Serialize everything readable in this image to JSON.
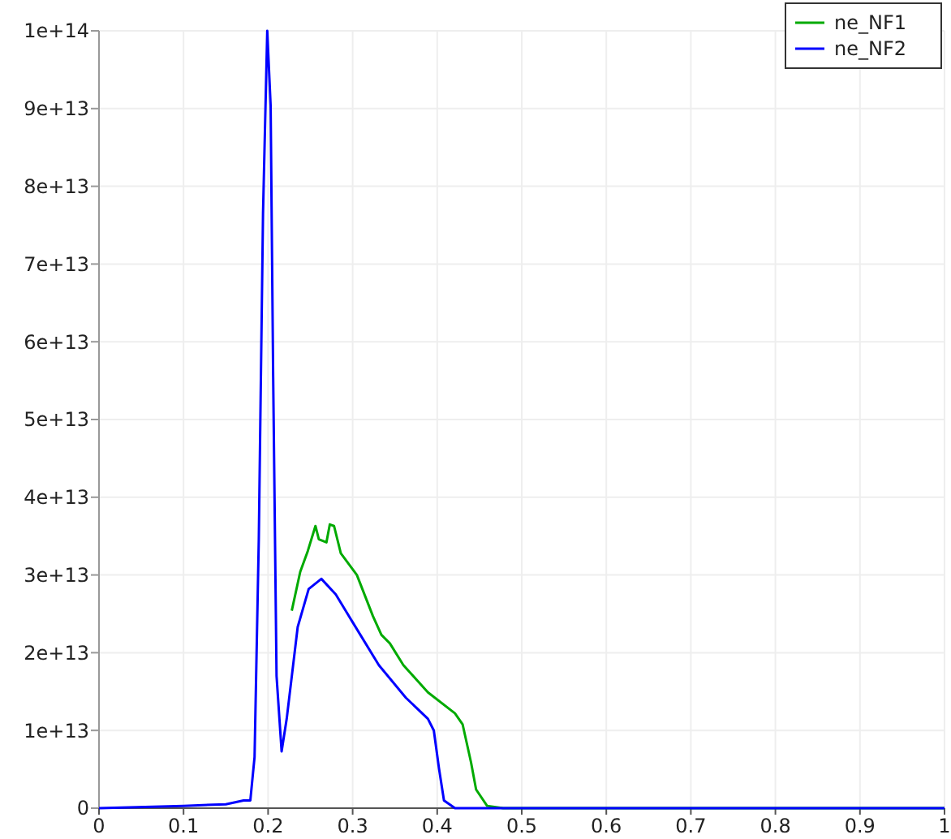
{
  "chart_data": {
    "type": "line",
    "xlim": [
      0,
      1
    ],
    "ylim": [
      0,
      100000000000000.0
    ],
    "xticks": [
      0,
      0.1,
      0.2,
      0.3,
      0.4,
      0.5,
      0.6,
      0.7,
      0.8,
      0.9,
      1
    ],
    "yticks": [
      {
        "value": 0,
        "label": "0"
      },
      {
        "value": 10000000000000.0,
        "label": "1e+13"
      },
      {
        "value": 20000000000000.0,
        "label": "2e+13"
      },
      {
        "value": 30000000000000.0,
        "label": "3e+13"
      },
      {
        "value": 40000000000000.0,
        "label": "4e+13"
      },
      {
        "value": 50000000000000.0,
        "label": "5e+13"
      },
      {
        "value": 60000000000000.0,
        "label": "6e+13"
      },
      {
        "value": 70000000000000.0,
        "label": "7e+13"
      },
      {
        "value": 80000000000000.0,
        "label": "8e+13"
      },
      {
        "value": 90000000000000.0,
        "label": "9e+13"
      },
      {
        "value": 100000000000000.0,
        "label": "1e+14"
      }
    ],
    "grid": true,
    "legend": "top right",
    "series": [
      {
        "name": "ne_NF1",
        "color": "#00aa00",
        "x": [
          0.228,
          0.238,
          0.247,
          0.256,
          0.26,
          0.269,
          0.273,
          0.278,
          0.286,
          0.305,
          0.324,
          0.334,
          0.344,
          0.36,
          0.389,
          0.421,
          0.43,
          0.44,
          0.446,
          0.459,
          0.478,
          1
        ],
        "values": [
          25400000000000.0,
          30400000000000.0,
          33100000000000.0,
          36300000000000.0,
          34600000000000.0,
          34200000000000.0,
          36500000000000.0,
          36300000000000.0,
          32800000000000.0,
          30000000000000.0,
          24700000000000.0,
          22300000000000.0,
          21200000000000.0,
          18400000000000.0,
          14900000000000.0,
          12200000000000.0,
          10800000000000.0,
          5900000000000.0,
          2400000000000.0,
          300000000000.0,
          0,
          0
        ]
      },
      {
        "name": "ne_NF2",
        "color": "#0000ff",
        "x": [
          0,
          0.1,
          0.15,
          0.171,
          0.179,
          0.184,
          0.189,
          0.194,
          0.199,
          0.203,
          0.206,
          0.21,
          0.216,
          0.222,
          0.235,
          0.248,
          0.263,
          0.28,
          0.299,
          0.331,
          0.363,
          0.389,
          0.396,
          0.402,
          0.408,
          0.421,
          1
        ],
        "values": [
          0,
          300000000000.0,
          500000000000.0,
          1000000000000.0,
          1000000000000.0,
          6600000000000.0,
          34600000000000.0,
          76500000000000.0,
          100000000000000.0,
          90400000000000.0,
          55500000000000.0,
          17000000000000.0,
          7300000000000.0,
          11500000000000.0,
          23300000000000.0,
          28200000000000.0,
          29500000000000.0,
          27500000000000.0,
          24100000000000.0,
          18400000000000.0,
          14200000000000.0,
          11500000000000.0,
          10000000000000.0,
          5200000000000.0,
          1000000000000.0,
          0,
          0
        ]
      }
    ]
  }
}
